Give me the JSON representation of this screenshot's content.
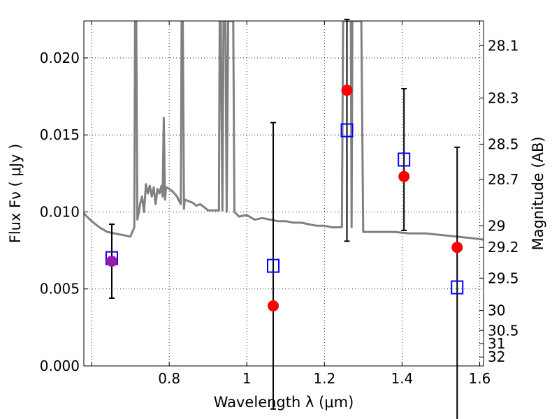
{
  "chart_data": {
    "type": "scatter",
    "xlabel": "Wavelength  λ (μm)",
    "ylabel": "Flux  Fν  ( μJy )",
    "y2label": "Magnitude (AB)",
    "xlim": [
      0.58,
      1.61
    ],
    "ylim": [
      0.0,
      0.0224
    ],
    "grid": true,
    "x_ticks": [
      {
        "value": 0.6,
        "label": ""
      },
      {
        "value": 0.8,
        "label": "0.8"
      },
      {
        "value": 1.0,
        "label": "1"
      },
      {
        "value": 1.2,
        "label": "1.2"
      },
      {
        "value": 1.4,
        "label": "1.4"
      },
      {
        "value": 1.6,
        "label": "1.6"
      }
    ],
    "y_ticks": [
      {
        "value": 0.0,
        "label": "0.000"
      },
      {
        "value": 0.005,
        "label": "0.005"
      },
      {
        "value": 0.01,
        "label": "0.010"
      },
      {
        "value": 0.015,
        "label": "0.015"
      },
      {
        "value": 0.02,
        "label": "0.020"
      }
    ],
    "mag_ticks": [
      {
        "value": 0.0208,
        "label": "28.1"
      },
      {
        "value": 0.0174,
        "label": "28.3"
      },
      {
        "value": 0.0144,
        "label": "28.5"
      },
      {
        "value": 0.0121,
        "label": "28.7"
      },
      {
        "value": 0.0091,
        "label": "29"
      },
      {
        "value": 0.0077,
        "label": "29.2"
      },
      {
        "value": 0.0057,
        "label": "29.5"
      },
      {
        "value": 0.0036,
        "label": "30"
      },
      {
        "value": 0.0023,
        "label": "30.5"
      },
      {
        "value": 0.00145,
        "label": "31"
      },
      {
        "value": 0.00058,
        "label": "32"
      }
    ],
    "series": [
      {
        "kind": "errorbar",
        "color": "#000000",
        "x": [
          0.652,
          1.068,
          1.258,
          1.405,
          1.542
        ],
        "y": [
          0.0068,
          0.0065,
          0.0153,
          0.0134,
          0.0051
        ],
        "yerr": [
          0.0024,
          0.0093,
          0.0072,
          0.0046,
          0.0091
        ]
      },
      {
        "kind": "marker",
        "marker": "square",
        "color": "#0000ff",
        "x": [
          0.652,
          1.068,
          1.258,
          1.405,
          1.542
        ],
        "y": [
          0.007,
          0.0065,
          0.0153,
          0.0134,
          0.0051
        ]
      },
      {
        "kind": "marker",
        "marker": "circle",
        "colors": [
          "#9b1ba8",
          "#ff0000",
          "#ff0000",
          "#ff0000",
          "#ff0000"
        ],
        "x": [
          0.652,
          1.068,
          1.258,
          1.405,
          1.542
        ],
        "y": [
          0.0068,
          0.0039,
          0.0179,
          0.0123,
          0.0077
        ]
      },
      {
        "kind": "line",
        "color": "#808080",
        "x": [
          0.58,
          0.6,
          0.62,
          0.64,
          0.66,
          0.68,
          0.7,
          0.71,
          0.712,
          0.715,
          0.718,
          0.721,
          0.725,
          0.73,
          0.735,
          0.74,
          0.745,
          0.75,
          0.755,
          0.76,
          0.765,
          0.77,
          0.775,
          0.78,
          0.783,
          0.786,
          0.789,
          0.792,
          0.8,
          0.81,
          0.82,
          0.83,
          0.832,
          0.835,
          0.838,
          0.84,
          0.85,
          0.86,
          0.87,
          0.88,
          0.89,
          0.9,
          0.91,
          0.92,
          0.928,
          0.93,
          0.933,
          0.937,
          0.94,
          0.945,
          0.948,
          0.952,
          0.955,
          0.958,
          0.962,
          0.965,
          0.968,
          0.972,
          0.98,
          1.0,
          1.02,
          1.04,
          1.06,
          1.08,
          1.1,
          1.12,
          1.14,
          1.16,
          1.18,
          1.2,
          1.22,
          1.24,
          1.245,
          1.248,
          1.252,
          1.256,
          1.26,
          1.264,
          1.268,
          1.27,
          1.272,
          1.276,
          1.28,
          1.285,
          1.29,
          1.295,
          1.3,
          1.34,
          1.38,
          1.42,
          1.46,
          1.5,
          1.54,
          1.58,
          1.61
        ],
        "y": [
          0.0099,
          0.0094,
          0.009,
          0.0087,
          0.0086,
          0.0085,
          0.0084,
          0.009,
          0.0224,
          0.0224,
          0.0095,
          0.0099,
          0.0105,
          0.011,
          0.01,
          0.0118,
          0.0112,
          0.0117,
          0.011,
          0.0116,
          0.0105,
          0.0115,
          0.0112,
          0.0117,
          0.011,
          0.0161,
          0.0108,
          0.0116,
          0.0115,
          0.0113,
          0.011,
          0.0105,
          0.0224,
          0.0224,
          0.0102,
          0.0108,
          0.0107,
          0.0106,
          0.0104,
          0.0105,
          0.0103,
          0.0101,
          0.0101,
          0.0101,
          0.0101,
          0.0224,
          0.0224,
          0.0101,
          0.0224,
          0.0224,
          0.01,
          0.0224,
          0.0224,
          0.0224,
          0.0224,
          0.0224,
          0.01,
          0.0099,
          0.0097,
          0.0098,
          0.0095,
          0.0096,
          0.0095,
          0.0094,
          0.0094,
          0.0093,
          0.0093,
          0.0092,
          0.0091,
          0.0091,
          0.009,
          0.009,
          0.009,
          0.0224,
          0.0224,
          0.0224,
          0.0224,
          0.0224,
          0.0224,
          0.009,
          0.0224,
          0.0224,
          0.0224,
          0.0224,
          0.0224,
          0.0224,
          0.0087,
          0.0087,
          0.0087,
          0.0086,
          0.0086,
          0.0085,
          0.0084,
          0.0083,
          0.0082
        ]
      }
    ]
  }
}
